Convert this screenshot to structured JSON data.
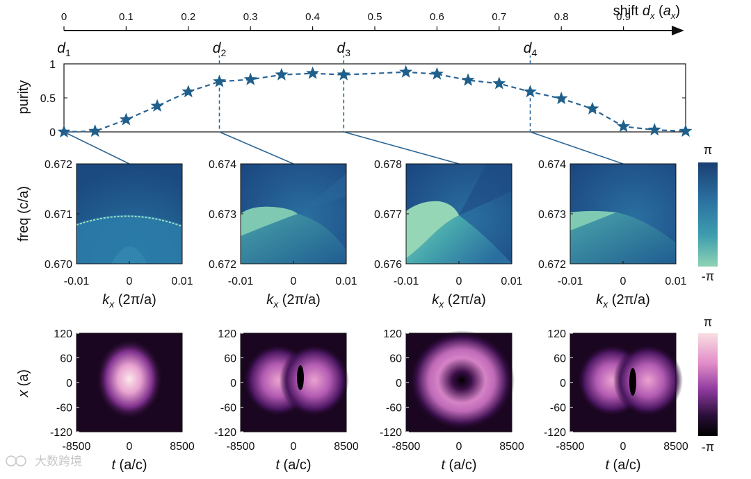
{
  "chart_data": [
    {
      "type": "line",
      "title": "",
      "top_axis": {
        "label_prefix": "shift ",
        "label_d": "d",
        "label_sub": "x",
        "label_unit": "a",
        "label_unit_sub": "x",
        "ticks": [
          0,
          0.1,
          0.2,
          0.3,
          0.4,
          0.5,
          0.6,
          0.7,
          0.8,
          0.9
        ],
        "tick_labels": [
          "0",
          "0.1",
          "0.2",
          "0.3",
          "0.4",
          "0.5",
          "0.6",
          "0.7",
          "0.8",
          "0.9"
        ]
      },
      "ylabel": "purity",
      "ylim": [
        0,
        1
      ],
      "ytick_labels": [
        "0",
        "0.5",
        "1"
      ],
      "series": [
        {
          "name": "purity",
          "x": [
            0,
            0.05,
            0.1,
            0.15,
            0.2,
            0.25,
            0.3,
            0.35,
            0.4,
            0.45,
            0.55,
            0.6,
            0.65,
            0.7,
            0.75,
            0.8,
            0.85,
            0.9,
            0.95,
            1.0
          ],
          "values": [
            0.0,
            0.01,
            0.18,
            0.38,
            0.59,
            0.74,
            0.77,
            0.84,
            0.86,
            0.84,
            0.88,
            0.85,
            0.76,
            0.71,
            0.59,
            0.49,
            0.34,
            0.08,
            0.03,
            0.01
          ]
        }
      ],
      "markers": [
        {
          "label": "d",
          "sub": "1",
          "x": 0
        },
        {
          "label": "d",
          "sub": "2",
          "x": 0.25
        },
        {
          "label": "d",
          "sub": "3",
          "x": 0.45
        },
        {
          "label": "d",
          "sub": "4",
          "x": 0.75
        }
      ],
      "colors": {
        "line": "#2a6496",
        "marker": "#1f5f8b"
      }
    },
    {
      "type": "heatmap",
      "row": "phase",
      "ylabel": "freq (c/a)",
      "xlabel_sym": "k",
      "xlabel_sub": "x",
      "xlabel_rest": " (2π/a)",
      "xtick_labels": [
        "-0.01",
        "0",
        "0.01"
      ],
      "panels": [
        {
          "marker": "d1",
          "ytick_labels": [
            "0.672",
            "0.671",
            "0.670"
          ],
          "ylim": [
            0.67,
            0.672
          ]
        },
        {
          "marker": "d2",
          "ytick_labels": [
            "0.674",
            "0.673",
            "0.672"
          ],
          "ylim": [
            0.672,
            0.674
          ]
        },
        {
          "marker": "d3",
          "ytick_labels": [
            "0.678",
            "0.677",
            "0.676"
          ],
          "ylim": [
            0.676,
            0.678
          ]
        },
        {
          "marker": "d4",
          "ytick_labels": [
            "0.674",
            "0.673",
            "0.672"
          ],
          "ylim": [
            0.672,
            0.674
          ]
        }
      ],
      "colorbar": {
        "top": "π",
        "bottom": "-π",
        "colors": [
          "#1b3f72",
          "#2a6fa0",
          "#3e9dae",
          "#8fd3b4"
        ]
      }
    },
    {
      "type": "heatmap",
      "row": "intensity",
      "ylabel_sym": "x",
      "ylabel_rest": " (a)",
      "xlabel_sym": "t",
      "xlabel_rest": " (a/c)",
      "ytick_labels": [
        "120",
        "60",
        "0",
        "-60",
        "-120"
      ],
      "xtick_labels": [
        "-8500",
        "0",
        "8500"
      ],
      "panels": [
        {
          "marker": "d1",
          "pattern": "single lobe"
        },
        {
          "marker": "d2",
          "pattern": "two lobes"
        },
        {
          "marker": "d3",
          "pattern": "ring"
        },
        {
          "marker": "d4",
          "pattern": "two lobes"
        }
      ],
      "colorbar": {
        "top": "π",
        "bottom": "-π",
        "colors": [
          "#f9dfe2",
          "#e08ac7",
          "#8e3a9e",
          "#2a0f3a",
          "#000000"
        ]
      }
    }
  ],
  "watermark": "大数跨境"
}
